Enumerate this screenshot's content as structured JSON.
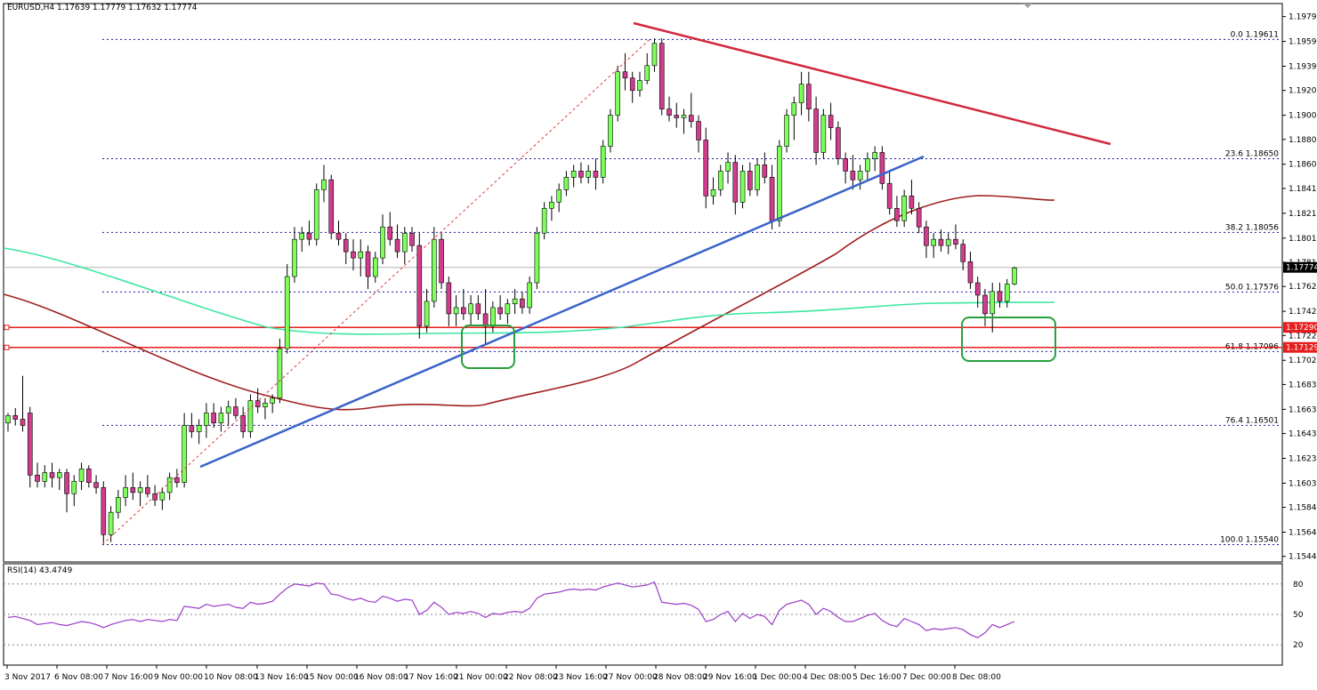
{
  "window": {
    "symbol_label": "EURUSD,H4",
    "ohlc_label": "1.17639 1.17779 1.17632 1.17774",
    "title_line": "EURUSD,H4  1.17639 1.17779 1.17632 1.17774"
  },
  "rsi": {
    "label": "RSI(14) 43.4749",
    "levels": [
      "80",
      "50",
      "20"
    ],
    "y_range": [
      0,
      100
    ]
  },
  "colors": {
    "bull_candle": "#7dff5a",
    "bear_candle": "#d23c8c",
    "wick": "#000000",
    "grid_dots": "#1a1aa0",
    "trend_red": "#d2283c",
    "trend_blue": "#3a64c8",
    "ma_dark_red": "#a01e1e",
    "ma_green": "#3ce6a0",
    "hline_red": "#e61e1e",
    "box_green": "#28a03c",
    "rsi_line": "#9b3cc8",
    "current_price_line": "#b4b4b4"
  },
  "chart_data": {
    "type": "candlestick",
    "title": "EURUSD,H4",
    "y_axis_ticks": [
      "1.19795",
      "1.19595",
      "1.19395",
      "1.19200",
      "1.19000",
      "1.18805",
      "1.18605",
      "1.18410",
      "1.18210",
      "1.18010",
      "1.17815",
      "1.17620",
      "1.17420",
      "1.17225",
      "1.17025",
      "1.16830",
      "1.16630",
      "1.16435",
      "1.16235",
      "1.16035",
      "1.15840",
      "1.15640",
      "1.15445"
    ],
    "ylim": [
      1.154,
      1.199
    ],
    "x_axis_ticks": [
      "3 Nov 2017",
      "6 Nov 08:00",
      "7 Nov 16:00",
      "9 Nov 00:00",
      "10 Nov 08:00",
      "13 Nov 16:00",
      "15 Nov 00:00",
      "16 Nov 08:00",
      "17 Nov 16:00",
      "21 Nov 00:00",
      "22 Nov 08:00",
      "23 Nov 16:00",
      "27 Nov 00:00",
      "28 Nov 08:00",
      "29 Nov 16:00",
      "1 Dec 00:00",
      "4 Dec 08:00",
      "5 Dec 16:00",
      "7 Dec 00:00",
      "8 Dec 08:00"
    ],
    "fibonacci_levels": [
      {
        "label": "0.0 1.19611",
        "price": 1.19611
      },
      {
        "label": "23.6 1.18650",
        "price": 1.1865
      },
      {
        "label": "38.2 1.18056",
        "price": 1.18056
      },
      {
        "label": "50.0 1.17576",
        "price": 1.17576
      },
      {
        "label": "61.8 1.17096",
        "price": 1.17096
      },
      {
        "label": "76.4 1.16501",
        "price": 1.16501
      },
      {
        "label": "100.0 1.15540",
        "price": 1.1554
      }
    ],
    "horizontal_lines": [
      {
        "label": "1.17290",
        "price": 1.1729
      },
      {
        "label": "1.17129",
        "price": 1.17129
      }
    ],
    "current_price": {
      "label": "1.17774",
      "price": 1.17774
    },
    "trendlines": [
      {
        "name": "bearish resistance",
        "from": [
          712,
          26
        ],
        "to": [
          1248,
          162
        ]
      },
      {
        "name": "bullish support",
        "from": [
          225,
          525
        ],
        "to": [
          1038,
          176
        ]
      }
    ],
    "highlight_boxes": [
      {
        "x": 519,
        "y": 366,
        "w": 59,
        "h": 48
      },
      {
        "x": 1081,
        "y": 357,
        "w": 105,
        "h": 49
      }
    ],
    "candles": [
      [
        1.1652,
        1.166,
        1.1645,
        1.1658
      ],
      [
        1.1658,
        1.1664,
        1.165,
        1.1655
      ],
      [
        1.1655,
        1.169,
        1.1645,
        1.165
      ],
      [
        1.166,
        1.1665,
        1.16,
        1.161
      ],
      [
        1.161,
        1.162,
        1.16,
        1.1605
      ],
      [
        1.1605,
        1.1618,
        1.16,
        1.1612
      ],
      [
        1.1612,
        1.162,
        1.16,
        1.1608
      ],
      [
        1.1608,
        1.1615,
        1.1598,
        1.1612
      ],
      [
        1.1612,
        1.1615,
        1.158,
        1.1595
      ],
      [
        1.1595,
        1.161,
        1.1585,
        1.1605
      ],
      [
        1.1605,
        1.162,
        1.1598,
        1.1615
      ],
      [
        1.1615,
        1.1618,
        1.16,
        1.1604
      ],
      [
        1.1604,
        1.161,
        1.1595,
        1.16
      ],
      [
        1.16,
        1.1605,
        1.1555,
        1.1562
      ],
      [
        1.1562,
        1.1585,
        1.1556,
        1.158
      ],
      [
        1.158,
        1.1598,
        1.1575,
        1.1592
      ],
      [
        1.1592,
        1.161,
        1.1585,
        1.16
      ],
      [
        1.16,
        1.1612,
        1.159,
        1.1596
      ],
      [
        1.1596,
        1.1605,
        1.1585,
        1.16
      ],
      [
        1.16,
        1.161,
        1.1592,
        1.1595
      ],
      [
        1.1595,
        1.1602,
        1.1585,
        1.159
      ],
      [
        1.159,
        1.16,
        1.1582,
        1.1596
      ],
      [
        1.1596,
        1.1612,
        1.159,
        1.1608
      ],
      [
        1.1608,
        1.1615,
        1.16,
        1.1604
      ],
      [
        1.1604,
        1.166,
        1.16,
        1.165
      ],
      [
        1.165,
        1.166,
        1.164,
        1.1645
      ],
      [
        1.1645,
        1.1655,
        1.1635,
        1.165
      ],
      [
        1.165,
        1.1668,
        1.164,
        1.166
      ],
      [
        1.166,
        1.1668,
        1.1648,
        1.1652
      ],
      [
        1.1652,
        1.1665,
        1.1645,
        1.166
      ],
      [
        1.166,
        1.167,
        1.165,
        1.1665
      ],
      [
        1.1665,
        1.1672,
        1.1655,
        1.1658
      ],
      [
        1.1658,
        1.1665,
        1.164,
        1.1645
      ],
      [
        1.1645,
        1.1675,
        1.164,
        1.167
      ],
      [
        1.167,
        1.168,
        1.166,
        1.1665
      ],
      [
        1.1665,
        1.1672,
        1.1655,
        1.1668
      ],
      [
        1.1668,
        1.1675,
        1.166,
        1.1672
      ],
      [
        1.1672,
        1.172,
        1.1668,
        1.1712
      ],
      [
        1.1712,
        1.178,
        1.1708,
        1.177
      ],
      [
        1.177,
        1.181,
        1.1765,
        1.18
      ],
      [
        1.18,
        1.181,
        1.179,
        1.1805
      ],
      [
        1.1805,
        1.1815,
        1.1795,
        1.18
      ],
      [
        1.18,
        1.1845,
        1.1795,
        1.184
      ],
      [
        1.184,
        1.186,
        1.183,
        1.1848
      ],
      [
        1.1848,
        1.1852,
        1.18,
        1.1805
      ],
      [
        1.1805,
        1.1815,
        1.1795,
        1.18
      ],
      [
        1.18,
        1.1805,
        1.178,
        1.179
      ],
      [
        1.179,
        1.18,
        1.1775,
        1.1785
      ],
      [
        1.1785,
        1.18,
        1.177,
        1.179
      ],
      [
        1.179,
        1.1795,
        1.176,
        1.177
      ],
      [
        1.177,
        1.179,
        1.1765,
        1.1785
      ],
      [
        1.1785,
        1.182,
        1.178,
        1.181
      ],
      [
        1.181,
        1.1822,
        1.1795,
        1.18
      ],
      [
        1.18,
        1.1812,
        1.1785,
        1.179
      ],
      [
        1.179,
        1.181,
        1.178,
        1.1805
      ],
      [
        1.1805,
        1.181,
        1.179,
        1.1795
      ],
      [
        1.1795,
        1.1805,
        1.172,
        1.173
      ],
      [
        1.173,
        1.176,
        1.1725,
        1.175
      ],
      [
        1.175,
        1.181,
        1.1745,
        1.18
      ],
      [
        1.18,
        1.1805,
        1.176,
        1.1765
      ],
      [
        1.1765,
        1.177,
        1.173,
        1.174
      ],
      [
        1.174,
        1.1755,
        1.173,
        1.1745
      ],
      [
        1.1745,
        1.176,
        1.1735,
        1.174
      ],
      [
        1.174,
        1.1755,
        1.173,
        1.1748
      ],
      [
        1.1748,
        1.1755,
        1.1735,
        1.174
      ],
      [
        1.174,
        1.176,
        1.1715,
        1.173
      ],
      [
        1.173,
        1.175,
        1.1725,
        1.1745
      ],
      [
        1.1745,
        1.1755,
        1.1735,
        1.174
      ],
      [
        1.174,
        1.1752,
        1.1732,
        1.1748
      ],
      [
        1.1748,
        1.176,
        1.174,
        1.1752
      ],
      [
        1.1752,
        1.1758,
        1.174,
        1.1745
      ],
      [
        1.1745,
        1.177,
        1.174,
        1.1765
      ],
      [
        1.1765,
        1.181,
        1.176,
        1.1805
      ],
      [
        1.1805,
        1.183,
        1.18,
        1.1825
      ],
      [
        1.1825,
        1.1835,
        1.1815,
        1.183
      ],
      [
        1.183,
        1.1845,
        1.1822,
        1.184
      ],
      [
        1.184,
        1.1855,
        1.1835,
        1.185
      ],
      [
        1.185,
        1.186,
        1.1842,
        1.1855
      ],
      [
        1.1855,
        1.1862,
        1.1845,
        1.185
      ],
      [
        1.185,
        1.186,
        1.1845,
        1.1855
      ],
      [
        1.1855,
        1.1865,
        1.184,
        1.185
      ],
      [
        1.185,
        1.188,
        1.1845,
        1.1875
      ],
      [
        1.1875,
        1.1905,
        1.187,
        1.19
      ],
      [
        1.19,
        1.194,
        1.1895,
        1.1935
      ],
      [
        1.1935,
        1.195,
        1.192,
        1.193
      ],
      [
        1.193,
        1.1935,
        1.191,
        1.192
      ],
      [
        1.192,
        1.1935,
        1.1915,
        1.1928
      ],
      [
        1.1928,
        1.195,
        1.1925,
        1.194
      ],
      [
        1.194,
        1.1962,
        1.1935,
        1.1958
      ],
      [
        1.1958,
        1.1962,
        1.19,
        1.1905
      ],
      [
        1.1905,
        1.1915,
        1.1895,
        1.19
      ],
      [
        1.19,
        1.191,
        1.189,
        1.1898
      ],
      [
        1.1898,
        1.1905,
        1.1885,
        1.19
      ],
      [
        1.19,
        1.1918,
        1.189,
        1.1895
      ],
      [
        1.1895,
        1.19,
        1.187,
        1.188
      ],
      [
        1.188,
        1.189,
        1.1825,
        1.1835
      ],
      [
        1.1835,
        1.185,
        1.1828,
        1.184
      ],
      [
        1.184,
        1.186,
        1.1835,
        1.1855
      ],
      [
        1.1855,
        1.187,
        1.1845,
        1.1862
      ],
      [
        1.1862,
        1.1868,
        1.182,
        1.183
      ],
      [
        1.183,
        1.186,
        1.1825,
        1.1855
      ],
      [
        1.1855,
        1.1862,
        1.1835,
        1.184
      ],
      [
        1.184,
        1.1865,
        1.1835,
        1.186
      ],
      [
        1.186,
        1.187,
        1.1845,
        1.185
      ],
      [
        1.185,
        1.186,
        1.1808,
        1.1815
      ],
      [
        1.1815,
        1.188,
        1.181,
        1.1875
      ],
      [
        1.1875,
        1.1905,
        1.187,
        1.19
      ],
      [
        1.19,
        1.1915,
        1.188,
        1.191
      ],
      [
        1.191,
        1.1935,
        1.19,
        1.1925
      ],
      [
        1.1925,
        1.1935,
        1.1895,
        1.1905
      ],
      [
        1.1905,
        1.1915,
        1.186,
        1.187
      ],
      [
        1.187,
        1.1905,
        1.1865,
        1.19
      ],
      [
        1.19,
        1.191,
        1.188,
        1.189
      ],
      [
        1.189,
        1.1895,
        1.186,
        1.1865
      ],
      [
        1.1865,
        1.187,
        1.1845,
        1.1855
      ],
      [
        1.1855,
        1.1868,
        1.184,
        1.1848
      ],
      [
        1.1848,
        1.186,
        1.184,
        1.1855
      ],
      [
        1.1855,
        1.187,
        1.1848,
        1.1865
      ],
      [
        1.1865,
        1.1875,
        1.1855,
        1.187
      ],
      [
        1.187,
        1.1875,
        1.184,
        1.1845
      ],
      [
        1.1845,
        1.1855,
        1.182,
        1.1825
      ],
      [
        1.1825,
        1.1835,
        1.181,
        1.1815
      ],
      [
        1.1815,
        1.184,
        1.181,
        1.1835
      ],
      [
        1.1835,
        1.1848,
        1.182,
        1.1825
      ],
      [
        1.1825,
        1.183,
        1.1805,
        1.181
      ],
      [
        1.181,
        1.1815,
        1.1785,
        1.1795
      ],
      [
        1.1795,
        1.1805,
        1.1785,
        1.18
      ],
      [
        1.18,
        1.1808,
        1.179,
        1.1795
      ],
      [
        1.1795,
        1.1805,
        1.1788,
        1.18
      ],
      [
        1.18,
        1.1812,
        1.1792,
        1.1796
      ],
      [
        1.1796,
        1.18,
        1.1775,
        1.1782
      ],
      [
        1.1782,
        1.179,
        1.176,
        1.1765
      ],
      [
        1.1765,
        1.177,
        1.1745,
        1.1755
      ],
      [
        1.1755,
        1.176,
        1.173,
        1.174
      ],
      [
        1.174,
        1.1765,
        1.1725,
        1.1758
      ],
      [
        1.1758,
        1.1765,
        1.1745,
        1.175
      ],
      [
        1.175,
        1.1768,
        1.1745,
        1.1764
      ],
      [
        1.1764,
        1.1778,
        1.1763,
        1.1777
      ]
    ],
    "moving_averages": [
      {
        "name": "MA dark red",
        "color": "#a01e1e"
      },
      {
        "name": "MA green",
        "color": "#3ce6a0"
      }
    ],
    "rsi_values": [
      47,
      48,
      46,
      44,
      40,
      41,
      42,
      40,
      39,
      41,
      43,
      42,
      40,
      37,
      40,
      42,
      44,
      45,
      43,
      45,
      44,
      43,
      45,
      44,
      58,
      57,
      56,
      60,
      58,
      59,
      60,
      57,
      56,
      62,
      60,
      61,
      63,
      70,
      76,
      80,
      79,
      78,
      81,
      80,
      70,
      69,
      66,
      64,
      66,
      63,
      62,
      68,
      66,
      63,
      65,
      64,
      50,
      54,
      62,
      57,
      50,
      52,
      51,
      53,
      51,
      47,
      51,
      50,
      52,
      53,
      52,
      56,
      66,
      70,
      71,
      72,
      74,
      75,
      74,
      75,
      74,
      77,
      79,
      81,
      79,
      77,
      78,
      79,
      82,
      62,
      61,
      60,
      61,
      59,
      55,
      43,
      45,
      50,
      53,
      43,
      51,
      46,
      50,
      48,
      40,
      54,
      60,
      62,
      64,
      60,
      50,
      56,
      53,
      47,
      43,
      43,
      46,
      49,
      51,
      44,
      40,
      38,
      46,
      43,
      40,
      34,
      36,
      35,
      36,
      37,
      35,
      30,
      27,
      32,
      40,
      37,
      40,
      43
    ],
    "rsi_ylabel": "RSI(14)"
  }
}
